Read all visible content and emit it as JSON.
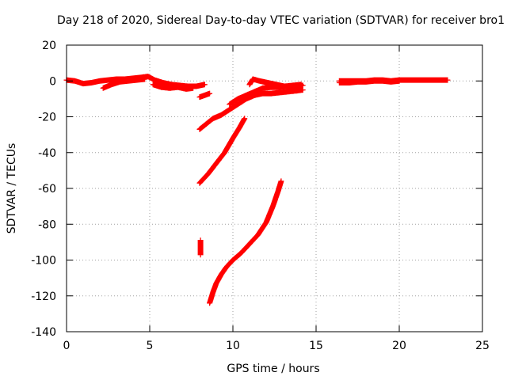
{
  "chart_data": {
    "type": "scatter",
    "title": "Day 218 of 2020, Sidereal Day-to-day VTEC variation (SDTVAR) for receiver bro1",
    "xlabel": "GPS time / hours",
    "ylabel": "SDTVAR / TECUs",
    "xlim": [
      0,
      25
    ],
    "ylim": [
      -140,
      20
    ],
    "xticks": [
      0,
      5,
      10,
      15,
      20,
      25
    ],
    "yticks": [
      20,
      0,
      -20,
      -40,
      -60,
      -80,
      -100,
      -120,
      -140
    ],
    "grid": true,
    "marker": "+",
    "color": "#ff0000",
    "series": [
      {
        "segments": [
          [
            [
              0.0,
              0.5
            ],
            [
              0.5,
              0.0
            ],
            [
              1.0,
              -1.5
            ],
            [
              1.5,
              -1.0
            ],
            [
              2.0,
              0.0
            ],
            [
              2.5,
              0.5
            ],
            [
              3.0,
              1.0
            ],
            [
              3.5,
              1.0
            ],
            [
              4.0,
              1.5
            ],
            [
              4.5,
              2.0
            ],
            [
              4.9,
              2.5
            ],
            [
              5.3,
              0.5
            ],
            [
              5.8,
              -1.0
            ],
            [
              6.3,
              -2.0
            ],
            [
              6.8,
              -2.5
            ],
            [
              7.3,
              -3.0
            ],
            [
              7.8,
              -3.0
            ],
            [
              8.3,
              -2.0
            ]
          ],
          [
            [
              2.2,
              -4.0
            ],
            [
              2.7,
              -2.0
            ],
            [
              3.2,
              -0.5
            ],
            [
              3.7,
              0.0
            ],
            [
              4.2,
              0.5
            ],
            [
              4.7,
              1.0
            ]
          ],
          [
            [
              5.2,
              -2.0
            ],
            [
              5.7,
              -3.5
            ],
            [
              6.2,
              -4.0
            ],
            [
              6.7,
              -3.5
            ],
            [
              7.2,
              -4.5
            ],
            [
              7.6,
              -4.0
            ]
          ],
          [
            [
              8.0,
              -9.0
            ],
            [
              8.3,
              -8.0
            ],
            [
              8.6,
              -7.0
            ]
          ],
          [
            [
              8.0,
              -27.0
            ],
            [
              8.4,
              -24.0
            ],
            [
              8.8,
              -21.0
            ],
            [
              9.3,
              -19.0
            ],
            [
              9.8,
              -16.0
            ],
            [
              10.3,
              -13.0
            ],
            [
              10.8,
              -10.0
            ],
            [
              11.3,
              -8.0
            ],
            [
              11.8,
              -7.0
            ],
            [
              12.3,
              -7.0
            ],
            [
              12.8,
              -6.5
            ],
            [
              13.3,
              -6.0
            ],
            [
              13.8,
              -5.5
            ],
            [
              14.2,
              -5.0
            ]
          ],
          [
            [
              9.8,
              -13.0
            ],
            [
              10.3,
              -10.0
            ],
            [
              10.8,
              -8.0
            ],
            [
              11.3,
              -6.0
            ],
            [
              11.8,
              -4.0
            ],
            [
              12.3,
              -3.5
            ],
            [
              12.8,
              -3.5
            ],
            [
              13.3,
              -3.0
            ],
            [
              13.8,
              -3.0
            ],
            [
              14.2,
              -2.5
            ]
          ],
          [
            [
              11.0,
              -2.0
            ],
            [
              11.2,
              1.0
            ],
            [
              11.6,
              0.0
            ],
            [
              12.1,
              -1.0
            ],
            [
              12.6,
              -2.0
            ],
            [
              13.1,
              -3.0
            ],
            [
              13.6,
              -2.5
            ],
            [
              14.1,
              -2.0
            ]
          ],
          [
            [
              8.0,
              -57.0
            ],
            [
              8.5,
              -52.0
            ],
            [
              9.0,
              -46.0
            ],
            [
              9.5,
              -40.0
            ],
            [
              10.0,
              -32.0
            ],
            [
              10.4,
              -26.0
            ],
            [
              10.7,
              -21.0
            ]
          ],
          [
            [
              8.6,
              -124.0
            ],
            [
              8.8,
              -118.0
            ],
            [
              9.0,
              -113.0
            ],
            [
              9.3,
              -108.0
            ],
            [
              9.6,
              -104.0
            ],
            [
              10.0,
              -100.0
            ],
            [
              10.5,
              -96.0
            ],
            [
              11.0,
              -91.0
            ],
            [
              11.5,
              -86.0
            ],
            [
              12.0,
              -79.0
            ],
            [
              12.4,
              -70.0
            ],
            [
              12.7,
              -62.0
            ],
            [
              12.9,
              -56.0
            ]
          ],
          [
            [
              8.05,
              -97.0
            ],
            [
              8.05,
              -93.0
            ],
            [
              8.05,
              -89.0
            ]
          ],
          [
            [
              16.4,
              0.0
            ],
            [
              17.0,
              0.0
            ],
            [
              17.5,
              0.0
            ],
            [
              18.0,
              0.0
            ],
            [
              18.5,
              0.5
            ],
            [
              19.0,
              0.5
            ],
            [
              19.5,
              0.0
            ],
            [
              20.0,
              0.5
            ],
            [
              20.5,
              0.5
            ],
            [
              21.0,
              0.5
            ],
            [
              21.5,
              0.5
            ],
            [
              22.0,
              0.5
            ],
            [
              22.5,
              0.5
            ],
            [
              22.9,
              0.5
            ]
          ],
          [
            [
              16.4,
              -1.0
            ],
            [
              17.0,
              -1.0
            ],
            [
              17.5,
              -0.5
            ],
            [
              18.0,
              -0.5
            ],
            [
              18.5,
              0.0
            ],
            [
              19.0,
              0.0
            ],
            [
              19.5,
              -0.5
            ],
            [
              20.0,
              0.0
            ]
          ]
        ]
      }
    ]
  }
}
